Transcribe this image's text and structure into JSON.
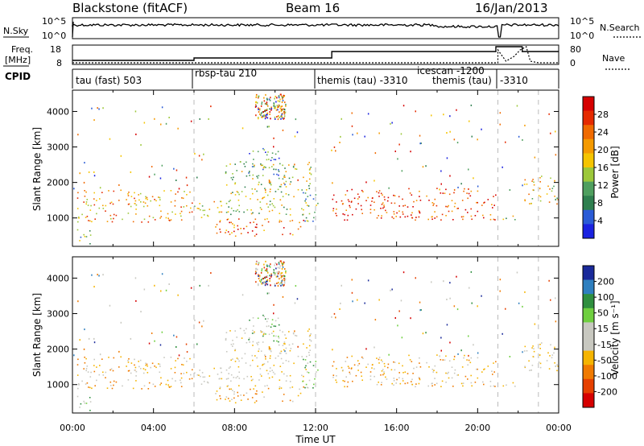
{
  "header": {
    "station": "Blackstone (fitACF)",
    "beam": "Beam 16",
    "date": "16/Jan/2013"
  },
  "strips": {
    "nsky_label": "N.Sky",
    "nsearch_label": "N.Search",
    "nsky_ticks": [
      "10^5",
      "10^0"
    ],
    "freq_label_1": "Freq.",
    "freq_label_2": "[MHz]",
    "freq_ticks": [
      "18",
      "8"
    ],
    "nave_label": "Nave",
    "nave_ticks": [
      "80",
      "0"
    ],
    "cpid_label": "CPID"
  },
  "cpid_segments": [
    {
      "label": "tau (fast) 503"
    },
    {
      "label": "rbsp-tau 210"
    },
    {
      "label": "themis (tau) -3310"
    },
    {
      "label": "icescan -1200"
    },
    {
      "label": "themis (tau)"
    },
    {
      "label": "-3310"
    }
  ],
  "colors": {
    "power_scale": [
      "#1a22e0",
      "#2a5bd6",
      "#2f7f4f",
      "#4f9f5f",
      "#9cc83a",
      "#f5c400",
      "#f59a00",
      "#f06a00",
      "#e52a00",
      "#d60000"
    ],
    "velocity_scale": [
      "#1a2a9a",
      "#2f7fbf",
      "#2f8f3f",
      "#6fcf3f",
      "#c8c8c0",
      "#c8c8c0",
      "#f5b400",
      "#f07a00",
      "#e64000",
      "#d60000"
    ]
  },
  "chart_data": [
    {
      "type": "heatmap",
      "title": "Power",
      "xlabel": "Time UT",
      "ylabel": "Slant Range [km]",
      "x_ticks": [
        "00:00",
        "04:00",
        "08:00",
        "12:00",
        "16:00",
        "20:00",
        "00:00"
      ],
      "y_ticks": [
        "1000",
        "2000",
        "3000",
        "4000"
      ],
      "ylim": [
        200,
        4600
      ],
      "xlim_hours": [
        0,
        24
      ],
      "colorbar_label": "Power [dB]",
      "colorbar_ticks": [
        "4",
        "8",
        "12",
        "16",
        "20",
        "24",
        "28"
      ]
    },
    {
      "type": "heatmap",
      "title": "Velocity",
      "xlabel": "Time UT",
      "ylabel": "Slant Range [km]",
      "x_ticks": [
        "00:00",
        "04:00",
        "08:00",
        "12:00",
        "16:00",
        "20:00",
        "00:00"
      ],
      "y_ticks": [
        "1000",
        "2000",
        "3000",
        "4000"
      ],
      "ylim": [
        200,
        4600
      ],
      "xlim_hours": [
        0,
        24
      ],
      "colorbar_label": "Velocity [m s⁻¹]",
      "colorbar_ticks": [
        "200",
        "100",
        "50",
        "15",
        "-15",
        "-50",
        "-100",
        "-200"
      ]
    }
  ],
  "mode_change_hours": [
    6.0,
    12.0,
    21.0,
    23.0
  ]
}
